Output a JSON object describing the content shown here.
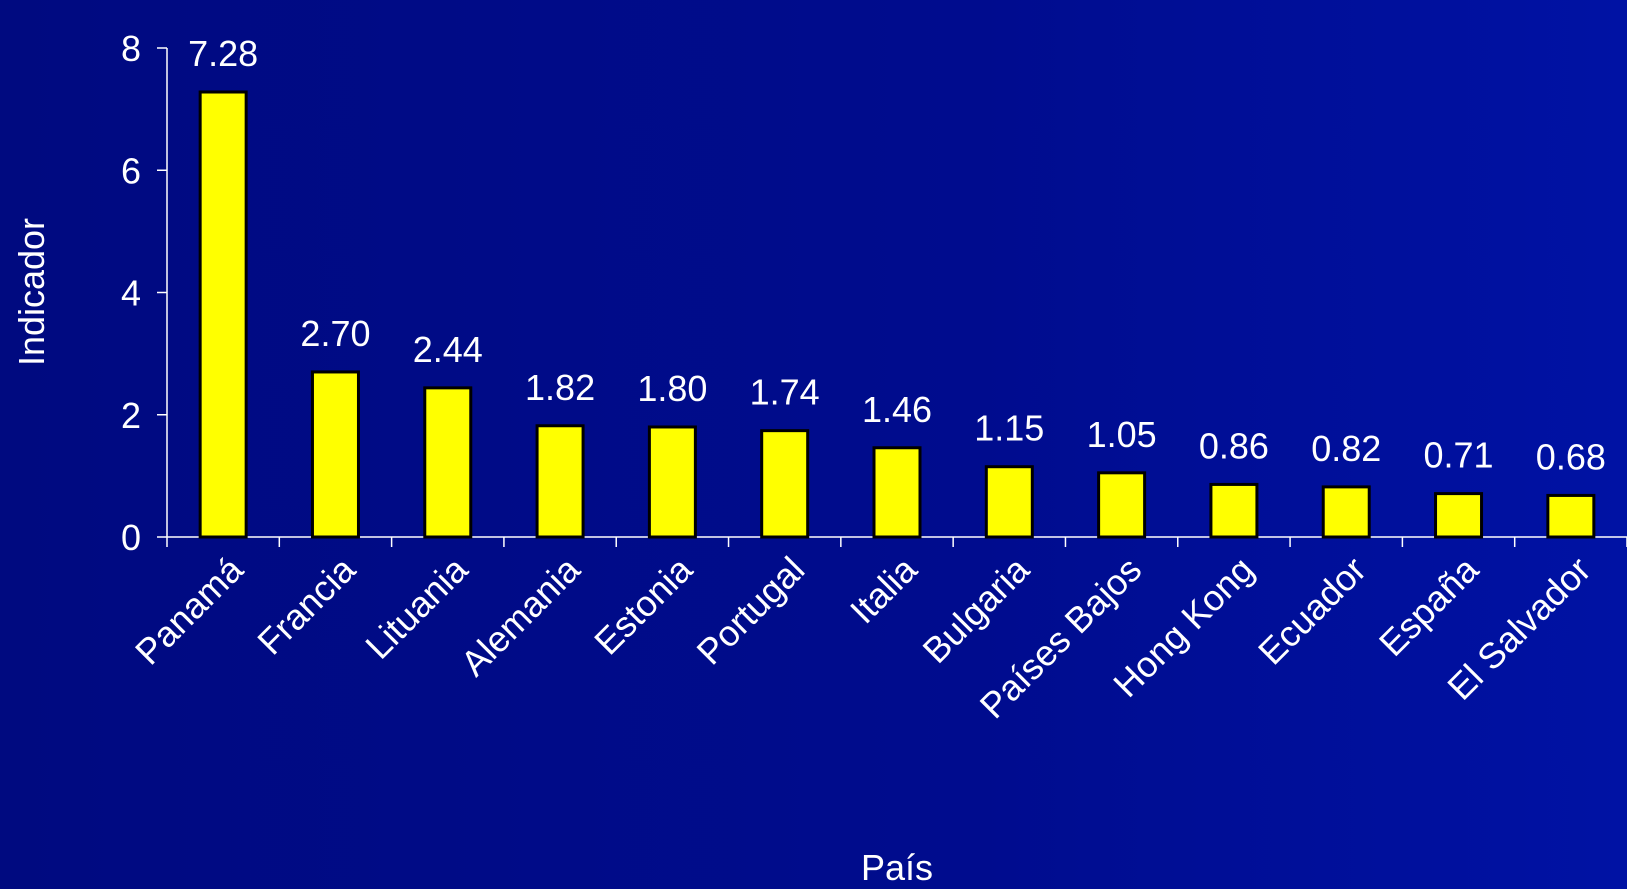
{
  "chart_data": {
    "type": "bar",
    "xlabel": "País",
    "ylabel": "Indicador",
    "ylim": [
      0,
      8
    ],
    "yticks": [
      0,
      2,
      4,
      6,
      8
    ],
    "grid": false,
    "categories": [
      "Panamá",
      "Francia",
      "Lituania",
      "Alemania",
      "Estonia",
      "Portugal",
      "Italia",
      "Bulgaria",
      "Países Bajos",
      "Hong Kong",
      "Ecuador",
      "España",
      "El Salvador"
    ],
    "values": [
      7.28,
      2.7,
      2.44,
      1.82,
      1.8,
      1.74,
      1.46,
      1.15,
      1.05,
      0.86,
      0.82,
      0.71,
      0.68
    ],
    "data_labels": [
      "7.28",
      "2.70",
      "2.44",
      "1.82",
      "1.80",
      "1.74",
      "1.46",
      "1.15",
      "1.05",
      "0.86",
      "0.82",
      "0.71",
      "0.68"
    ]
  },
  "colors": {
    "background": "#000c8e",
    "bar_fill": "#ffff00",
    "bar_stroke": "#000000",
    "text": "#ffffff",
    "axis": "#ffffff"
  }
}
